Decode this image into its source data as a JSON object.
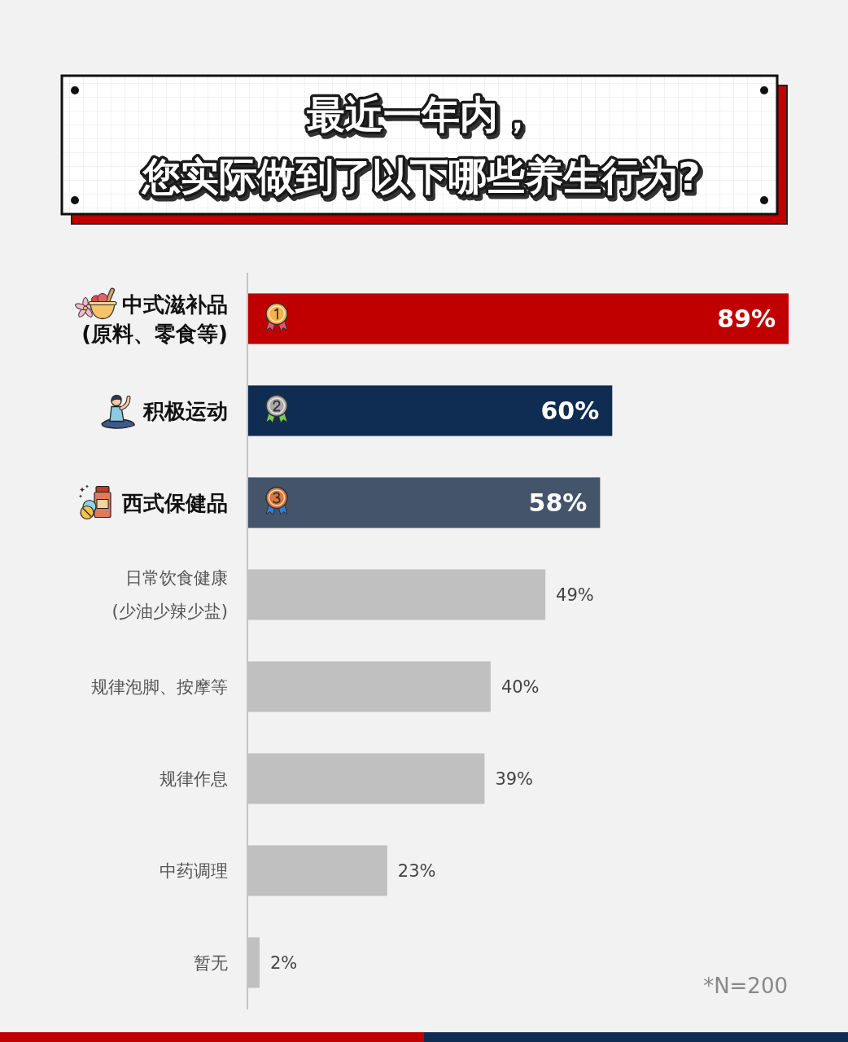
{
  "chart_data": {
    "type": "bar",
    "orientation": "horizontal",
    "title": "最近一年内，您实际做到了以下哪些养生行为?",
    "categories": [
      "中式滋补品\n(原料、零食等)",
      "积极运动",
      "西式保健品",
      "日常饮食健康\n(少油少辣少盐)",
      "规律泡脚、按摩等",
      "规律作息",
      "中药调理",
      "暂无"
    ],
    "values": [
      89,
      60,
      58,
      49,
      40,
      39,
      23,
      2
    ],
    "colors": [
      "#c00000",
      "#0f2c52",
      "#44546a",
      "#c0c0c0",
      "#c0c0c0",
      "#c0c0c0",
      "#c0c0c0",
      "#c0c0c0"
    ],
    "value_labels": [
      "89%",
      "60%",
      "58%",
      "49%",
      "40%",
      "39%",
      "23%",
      "2%"
    ],
    "tick_labels": "y",
    "annotations": [
      "*N=200"
    ]
  }
}
